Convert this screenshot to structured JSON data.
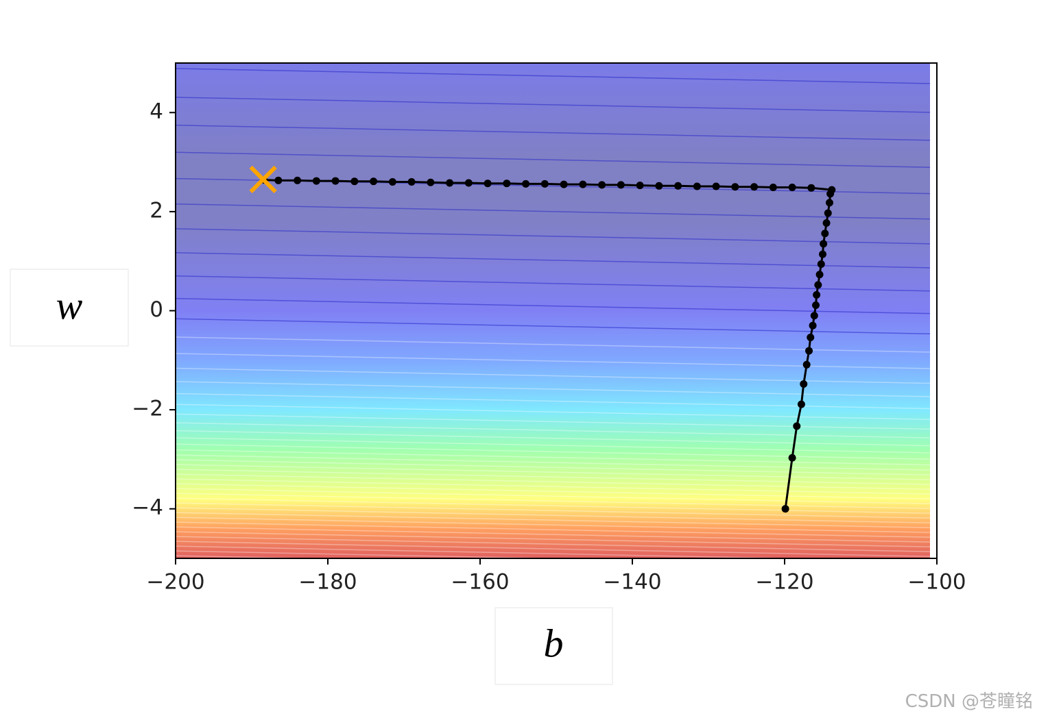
{
  "chart_data": {
    "type": "contour-path",
    "xlabel": "b",
    "ylabel": "w",
    "xlim": [
      -200,
      -100
    ],
    "ylim": [
      -5,
      5
    ],
    "xticks": [
      {
        "value": -200,
        "label": "−200"
      },
      {
        "value": -180,
        "label": "−180"
      },
      {
        "value": -160,
        "label": "−160"
      },
      {
        "value": -140,
        "label": "−140"
      },
      {
        "value": -120,
        "label": "−120"
      },
      {
        "value": -100,
        "label": "−100"
      }
    ],
    "yticks": [
      {
        "value": -4,
        "label": "−4"
      },
      {
        "value": -2,
        "label": "−2"
      },
      0,
      2,
      4
    ],
    "series": [
      {
        "color": "#000000",
        "x": [
          -119.9,
          -119.0,
          -118.4,
          -117.8,
          -117.5,
          -117.1,
          -116.8,
          -116.6,
          -116.3,
          -116.1,
          -115.9,
          -115.8,
          -115.6,
          -115.4,
          -115.2,
          -115.0,
          -114.9,
          -114.7,
          -114.5,
          -114.3,
          -114.1,
          -114.0,
          -113.8,
          -116.5,
          -119,
          -121.5,
          -124,
          -126.5,
          -129,
          -131.5,
          -134,
          -136.5,
          -139,
          -141.5,
          -144,
          -146.5,
          -149,
          -151.5,
          -154,
          -156.5,
          -159,
          -161.5,
          -164,
          -166.5,
          -169,
          -171.5,
          -174,
          -176.5,
          -179,
          -181.5,
          -184,
          -186.5,
          -188.4
        ],
        "values": [
          -4.0,
          -2.97,
          -2.33,
          -1.89,
          -1.48,
          -1.09,
          -0.81,
          -0.54,
          -0.3,
          -0.1,
          0.11,
          0.32,
          0.52,
          0.73,
          0.94,
          1.14,
          1.35,
          1.56,
          1.77,
          1.97,
          2.18,
          2.36,
          2.44,
          2.48,
          2.49,
          2.49,
          2.5,
          2.5,
          2.51,
          2.51,
          2.52,
          2.52,
          2.53,
          2.54,
          2.54,
          2.55,
          2.55,
          2.56,
          2.56,
          2.57,
          2.57,
          2.58,
          2.58,
          2.59,
          2.6,
          2.6,
          2.61,
          2.61,
          2.62,
          2.62,
          2.63,
          2.63,
          2.64
        ]
      }
    ],
    "start_marker": {
      "x": -188.5,
      "y": 2.65,
      "color": "#ffa500"
    }
  },
  "watermark": "CSDN @苍瞳铭"
}
